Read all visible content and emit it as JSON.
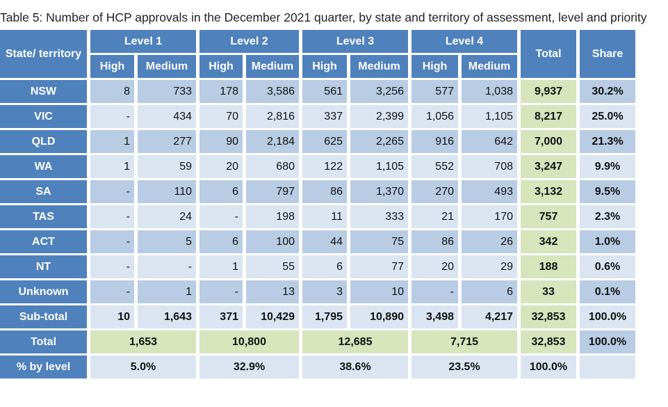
{
  "title": "Table 5: Number of HCP approvals in the December 2021 quarter, by state and territory of assessment, level and priority",
  "header": {
    "state": "State/ territory",
    "levels": [
      "Level 1",
      "Level 2",
      "Level 3",
      "Level 4"
    ],
    "priorities": [
      "High",
      "Medium",
      "High",
      "Medium",
      "High",
      "Medium",
      "High",
      "Medium"
    ],
    "total": "Total",
    "share": "Share"
  },
  "rows": [
    {
      "state": "NSW",
      "values": [
        "8",
        "733",
        "178",
        "3,586",
        "561",
        "3,256",
        "577",
        "1,038"
      ],
      "total": "9,937",
      "share": "30.2%"
    },
    {
      "state": "VIC",
      "values": [
        "-",
        "434",
        "70",
        "2,816",
        "337",
        "2,399",
        "1,056",
        "1,105"
      ],
      "total": "8,217",
      "share": "25.0%"
    },
    {
      "state": "QLD",
      "values": [
        "1",
        "277",
        "90",
        "2,184",
        "625",
        "2,265",
        "916",
        "642"
      ],
      "total": "7,000",
      "share": "21.3%"
    },
    {
      "state": "WA",
      "values": [
        "1",
        "59",
        "20",
        "680",
        "122",
        "1,105",
        "552",
        "708"
      ],
      "total": "3,247",
      "share": "9.9%"
    },
    {
      "state": "SA",
      "values": [
        "-",
        "110",
        "6",
        "797",
        "86",
        "1,370",
        "270",
        "493"
      ],
      "total": "3,132",
      "share": "9.5%"
    },
    {
      "state": "TAS",
      "values": [
        "-",
        "24",
        "-",
        "198",
        "11",
        "333",
        "21",
        "170"
      ],
      "total": "757",
      "share": "2.3%"
    },
    {
      "state": "ACT",
      "values": [
        "-",
        "5",
        "6",
        "100",
        "44",
        "75",
        "86",
        "26"
      ],
      "total": "342",
      "share": "1.0%"
    },
    {
      "state": "NT",
      "values": [
        "-",
        "-",
        "1",
        "55",
        "6",
        "77",
        "20",
        "29"
      ],
      "total": "188",
      "share": "0.6%"
    },
    {
      "state": "Unknown",
      "values": [
        "-",
        "1",
        "-",
        "13",
        "3",
        "10",
        "-",
        "6"
      ],
      "total": "33",
      "share": "0.1%"
    }
  ],
  "subtotal": {
    "state": "Sub-total",
    "values": [
      "10",
      "1,643",
      "371",
      "10,429",
      "1,795",
      "10,890",
      "3,498",
      "4,217"
    ],
    "total": "32,853",
    "share": "100.0%"
  },
  "level_total": {
    "state": "Total",
    "values": [
      "1,653",
      "10,800",
      "12,685",
      "7,715"
    ],
    "total": "32,853",
    "share": "100.0%"
  },
  "pct_by_level": {
    "state": "% by level",
    "values": [
      "5.0%",
      "32.9%",
      "38.6%",
      "23.5%"
    ],
    "total": "100.0%"
  },
  "colors": {
    "header": "#4f81bd",
    "row_dark": "#b8cce4",
    "row_light": "#dbe5f1",
    "total_col": "#d7e4bc"
  }
}
